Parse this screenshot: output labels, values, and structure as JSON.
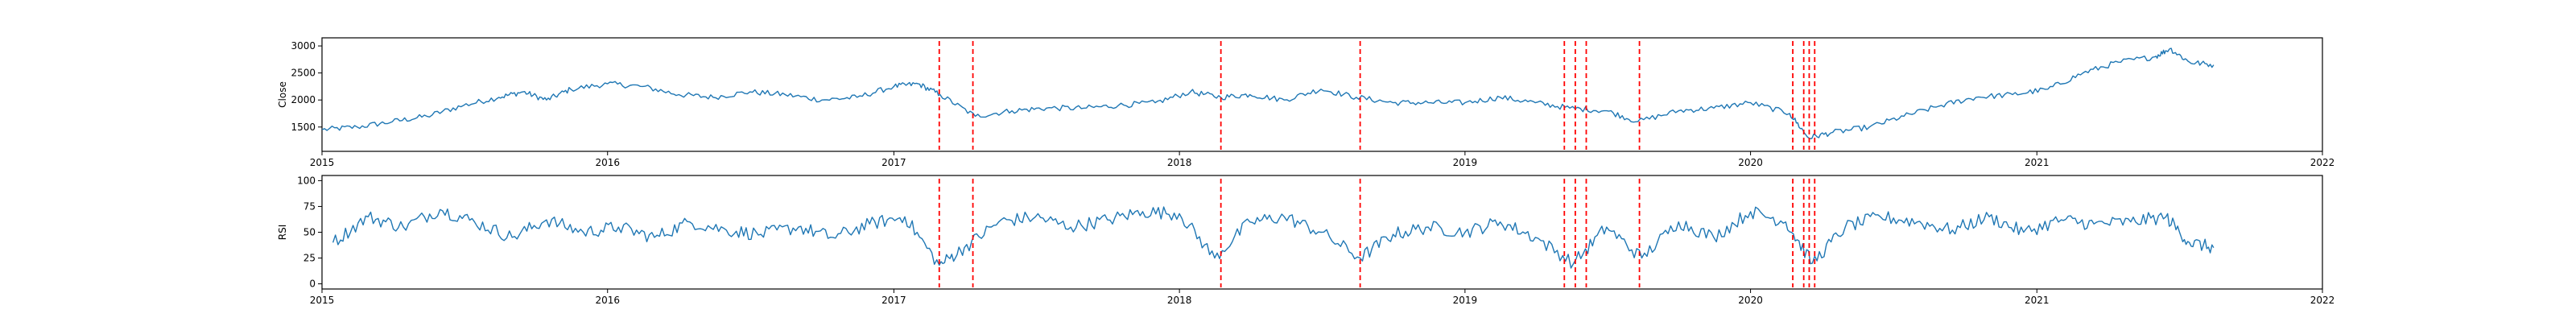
{
  "figure": {
    "colors": {
      "line": "#1f77b4",
      "event_marker": "#ff0000",
      "axes": "#000000",
      "background": "#ffffff"
    }
  },
  "chart_data": [
    {
      "type": "line",
      "title": "",
      "xlabel": "",
      "ylabel": "Close",
      "xlim": [
        "2015-01-01",
        "2022-01-01"
      ],
      "ylim": [
        1050,
        3150
      ],
      "x_tick_labels": [
        "2015",
        "2016",
        "2017",
        "2018",
        "2019",
        "2020",
        "2021",
        "2022"
      ],
      "y_ticks": [
        1500,
        2000,
        2500,
        3000
      ],
      "grid": false,
      "series": [
        {
          "x": [
            "2015-01-01",
            "2015-02-15",
            "2015-04-01",
            "2015-05-15",
            "2015-07-01",
            "2015-08-15",
            "2015-09-15",
            "2015-10-15",
            "2015-11-15",
            "2016-01-01",
            "2016-02-15",
            "2016-04-01",
            "2016-05-15",
            "2016-07-01",
            "2016-08-15",
            "2016-10-01",
            "2016-11-15",
            "2017-01-01",
            "2017-02-01",
            "2017-03-01",
            "2017-04-15",
            "2017-06-01",
            "2017-07-15",
            "2017-09-01",
            "2017-10-15",
            "2017-12-01",
            "2018-01-15",
            "2018-02-23",
            "2018-04-01",
            "2018-05-15",
            "2018-07-01",
            "2018-08-15",
            "2018-10-01",
            "2018-11-15",
            "2019-01-01",
            "2019-02-15",
            "2019-04-01",
            "2019-05-15",
            "2019-07-01",
            "2019-08-10",
            "2019-10-01",
            "2019-11-15",
            "2020-01-01",
            "2020-02-20",
            "2020-03-15",
            "2020-04-15",
            "2020-06-01",
            "2020-07-15",
            "2020-09-01",
            "2020-10-15",
            "2020-12-01",
            "2021-01-15",
            "2021-03-01",
            "2021-04-15",
            "2021-06-01",
            "2021-06-20",
            "2021-07-15",
            "2021-08-15"
          ],
          "y": [
            1450,
            1500,
            1600,
            1700,
            1900,
            2050,
            2150,
            2000,
            2200,
            2300,
            2250,
            2100,
            2050,
            2150,
            2100,
            2000,
            2050,
            2250,
            2300,
            2100,
            1700,
            1800,
            1850,
            1850,
            1900,
            1950,
            2150,
            2050,
            2100,
            2000,
            2200,
            2050,
            1950,
            1950,
            1950,
            2050,
            1950,
            1850,
            1800,
            1600,
            1800,
            1850,
            1950,
            1750,
            1300,
            1400,
            1500,
            1700,
            1900,
            2050,
            2100,
            2200,
            2500,
            2700,
            2800,
            2950,
            2700,
            2650
          ]
        }
      ],
      "event_dates": [
        "2017-02-28",
        "2017-04-12",
        "2018-02-23",
        "2018-08-20",
        "2019-05-08",
        "2019-05-22",
        "2019-06-05",
        "2019-08-12",
        "2020-02-24",
        "2020-03-09",
        "2020-03-16",
        "2020-03-23"
      ]
    },
    {
      "type": "line",
      "title": "",
      "xlabel": "",
      "ylabel": "RSI",
      "xlim": [
        "2015-01-01",
        "2022-01-01"
      ],
      "ylim": [
        -5,
        105
      ],
      "x_tick_labels": [
        "2015",
        "2016",
        "2017",
        "2018",
        "2019",
        "2020",
        "2021",
        "2022"
      ],
      "y_ticks": [
        0,
        25,
        50,
        75,
        100
      ],
      "grid": false,
      "series": [
        {
          "x": [
            "2015-01-15",
            "2015-03-01",
            "2015-04-15",
            "2015-06-01",
            "2015-07-15",
            "2015-09-01",
            "2015-10-15",
            "2015-12-01",
            "2016-01-15",
            "2016-03-01",
            "2016-04-15",
            "2016-06-01",
            "2016-07-15",
            "2016-09-01",
            "2016-10-15",
            "2016-12-01",
            "2017-01-15",
            "2017-02-28",
            "2017-04-01",
            "2017-05-15",
            "2017-07-01",
            "2017-08-15",
            "2017-10-01",
            "2017-11-15",
            "2018-01-01",
            "2018-02-15",
            "2018-04-01",
            "2018-05-15",
            "2018-07-01",
            "2018-08-20",
            "2018-10-01",
            "2018-11-15",
            "2019-01-01",
            "2019-02-15",
            "2019-04-01",
            "2019-05-20",
            "2019-07-01",
            "2019-08-15",
            "2019-10-01",
            "2019-11-15",
            "2020-01-01",
            "2020-02-15",
            "2020-03-20",
            "2020-05-01",
            "2020-06-15",
            "2020-08-01",
            "2020-09-15",
            "2020-11-01",
            "2020-12-15",
            "2021-02-01",
            "2021-03-15",
            "2021-05-01",
            "2021-06-15",
            "2021-07-15",
            "2021-08-15"
          ],
          "y": [
            40,
            65,
            55,
            72,
            60,
            45,
            62,
            50,
            55,
            45,
            60,
            52,
            48,
            55,
            45,
            58,
            65,
            18,
            35,
            60,
            65,
            55,
            62,
            70,
            68,
            25,
            60,
            65,
            50,
            25,
            48,
            55,
            50,
            60,
            45,
            20,
            55,
            25,
            60,
            45,
            70,
            60,
            20,
            55,
            65,
            60,
            52,
            65,
            50,
            62,
            58,
            60,
            65,
            40,
            35
          ]
        }
      ],
      "event_dates": [
        "2017-02-28",
        "2017-04-12",
        "2018-02-23",
        "2018-08-20",
        "2019-05-08",
        "2019-05-22",
        "2019-06-05",
        "2019-08-12",
        "2020-02-24",
        "2020-03-09",
        "2020-03-16",
        "2020-03-23"
      ]
    }
  ]
}
